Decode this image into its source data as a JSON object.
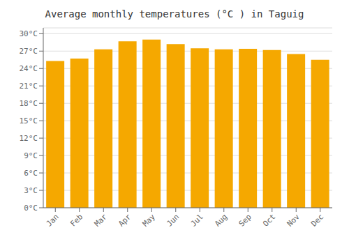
{
  "chart_data": {
    "type": "bar",
    "title": "Average monthly temperatures (°C ) in Taguig",
    "categories": [
      "Jan",
      "Feb",
      "Mar",
      "Apr",
      "May",
      "Jun",
      "Jul",
      "Aug",
      "Sep",
      "Oct",
      "Nov",
      "Dec"
    ],
    "values": [
      25.3,
      25.7,
      27.3,
      28.7,
      29.0,
      28.2,
      27.5,
      27.3,
      27.4,
      27.2,
      26.5,
      25.5
    ],
    "color": "#F5A800",
    "ylim": [
      0,
      31
    ],
    "yticks": [
      {
        "value": 0,
        "label": "0°C"
      },
      {
        "value": 3,
        "label": "3°C"
      },
      {
        "value": 6,
        "label": "6°C"
      },
      {
        "value": 9,
        "label": "9°C"
      },
      {
        "value": 12,
        "label": "12°C"
      },
      {
        "value": 15,
        "label": "15°C"
      },
      {
        "value": 18,
        "label": "18°C"
      },
      {
        "value": 21,
        "label": "21°C"
      },
      {
        "value": 24,
        "label": "24°C"
      },
      {
        "value": 27,
        "label": "27°C"
      },
      {
        "value": 30,
        "label": "30°C"
      }
    ],
    "grid": true
  }
}
